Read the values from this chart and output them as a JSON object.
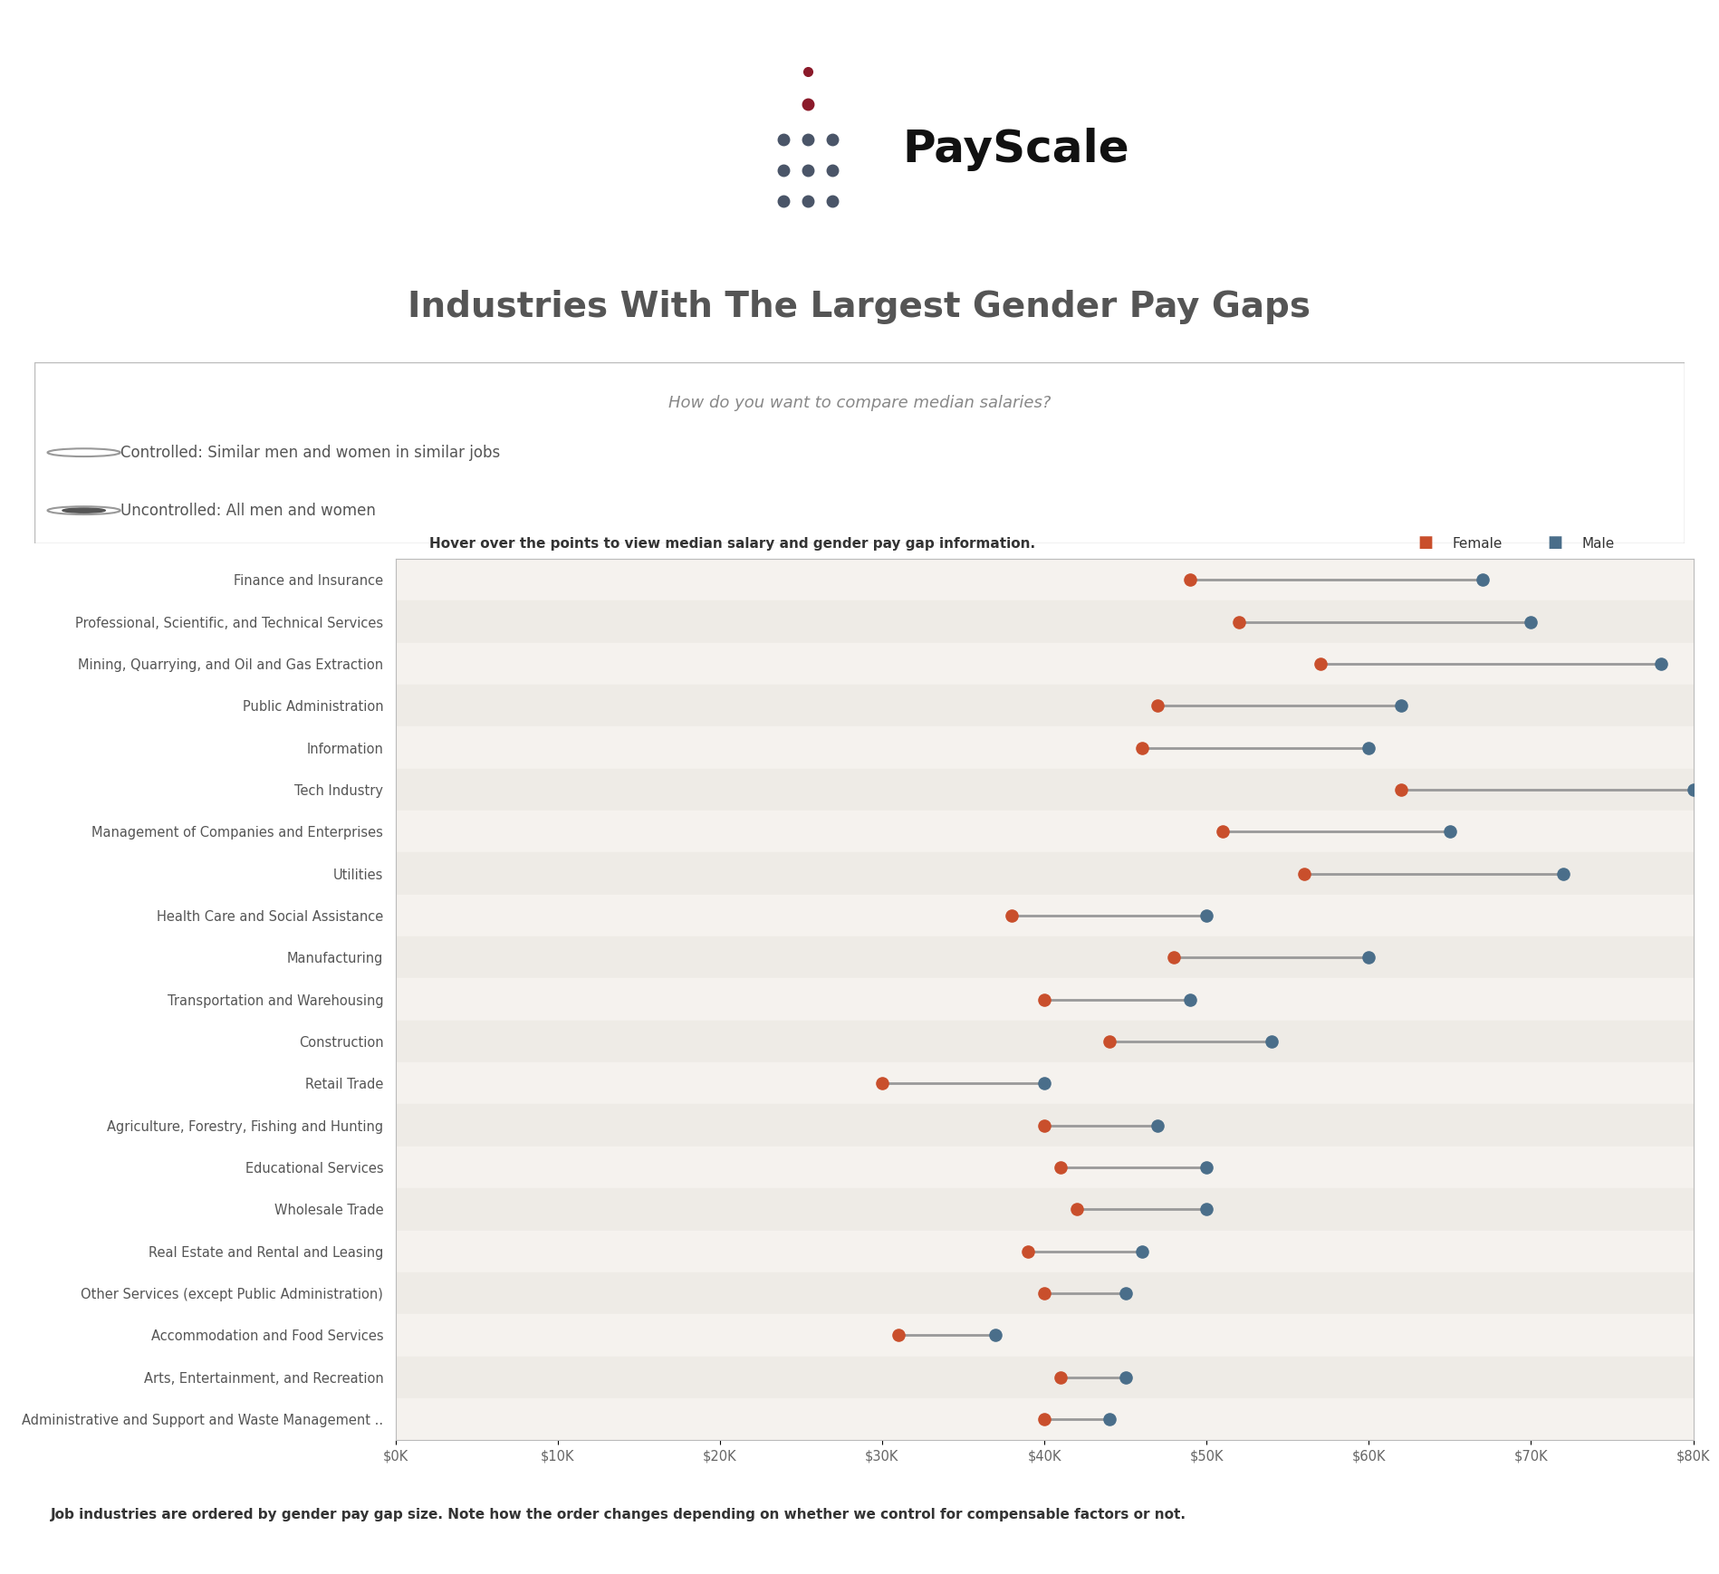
{
  "title": "Industries With The Largest Gender Pay Gaps",
  "subtitle": "Hover over the points to view median salary and gender pay gap information.",
  "footnote": "Job industries are ordered by gender pay gap size. Note how the order changes depending on whether we control for compensable factors or not.",
  "radio_title": "How do you want to compare median salaries?",
  "radio_options": [
    "Controlled: Similar men and women in similar jobs",
    "Uncontrolled: All men and women"
  ],
  "radio_selected": 1,
  "legend_female_color": "#C94F2C",
  "legend_male_color": "#4A6E8A",
  "connector_color": "#999999",
  "categories": [
    "Finance and Insurance",
    "Professional, Scientific, and Technical Services",
    "Mining, Quarrying, and Oil and Gas Extraction",
    "Public Administration",
    "Information",
    "Tech Industry",
    "Management of Companies and Enterprises",
    "Utilities",
    "Health Care and Social Assistance",
    "Manufacturing",
    "Transportation and Warehousing",
    "Construction",
    "Retail Trade",
    "Agriculture, Forestry, Fishing and Hunting",
    "Educational Services",
    "Wholesale Trade",
    "Real Estate and Rental and Leasing",
    "Other Services (except Public Administration)",
    "Accommodation and Food Services",
    "Arts, Entertainment, and Recreation",
    "Administrative and Support and Waste Management .."
  ],
  "female_values": [
    49000,
    52000,
    57000,
    47000,
    46000,
    62000,
    51000,
    56000,
    38000,
    48000,
    40000,
    44000,
    30000,
    40000,
    41000,
    42000,
    39000,
    40000,
    31000,
    41000,
    40000
  ],
  "male_values": [
    67000,
    70000,
    78000,
    62000,
    60000,
    80000,
    65000,
    72000,
    50000,
    60000,
    49000,
    54000,
    40000,
    47000,
    50000,
    50000,
    46000,
    45000,
    37000,
    45000,
    44000
  ],
  "xlim": [
    0,
    80000
  ],
  "xticks": [
    0,
    10000,
    20000,
    30000,
    40000,
    50000,
    60000,
    70000,
    80000
  ],
  "xticklabels": [
    "$0K",
    "$10K",
    "$20K",
    "$30K",
    "$40K",
    "$50K",
    "$60K",
    "$70K",
    "$80K"
  ],
  "bg_color": "#FFFFFF",
  "row_alt_color": "#EEEBE6",
  "row_normal_color": "#F5F2EE",
  "border_color": "#BBBBBB",
  "title_fontsize": 28,
  "subtitle_fontsize": 11,
  "label_fontsize": 10.5,
  "tick_fontsize": 10.5,
  "footnote_fontsize": 11,
  "dot_size": 90,
  "line_width": 2.0,
  "logo_dot_color": "#4A5568",
  "logo_red_color": "#8B1A2A",
  "logo_text_color": "#111111"
}
